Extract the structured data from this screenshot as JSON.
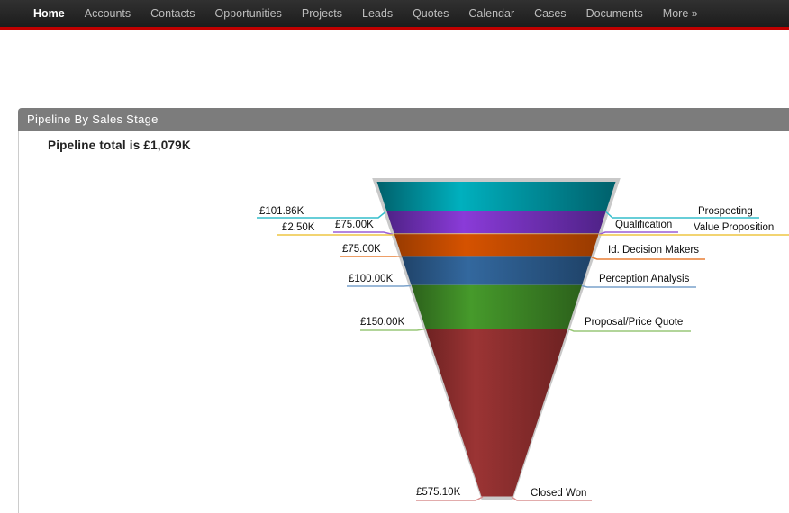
{
  "nav": {
    "items": [
      {
        "label": "Home",
        "active": true
      },
      {
        "label": "Accounts",
        "active": false
      },
      {
        "label": "Contacts",
        "active": false
      },
      {
        "label": "Opportunities",
        "active": false
      },
      {
        "label": "Projects",
        "active": false
      },
      {
        "label": "Leads",
        "active": false
      },
      {
        "label": "Quotes",
        "active": false
      },
      {
        "label": "Calendar",
        "active": false
      },
      {
        "label": "Cases",
        "active": false
      },
      {
        "label": "Documents",
        "active": false
      },
      {
        "label": "More »",
        "active": false
      }
    ]
  },
  "panel": {
    "title": "Pipeline By Sales Stage",
    "subtitle": "Pipeline total is £1,079K"
  },
  "colors": {
    "nav_bg": "#262626",
    "nav_accent": "#c00000",
    "panel_header_bg": "#7c7c7c",
    "funnel_border": "#c9c9c9",
    "label_text": "#0f0f0f"
  },
  "chart_data": {
    "type": "funnel",
    "title": "Pipeline By Sales Stage",
    "total_label": "Pipeline total is £1,079K",
    "total_value_k": 1079.46,
    "currency": "£",
    "stages": [
      {
        "name": "Prospecting",
        "amount_label": "£101.86K",
        "value": 101.86,
        "color_light": "#00b0be",
        "color_dark": "#00606b",
        "line_color": "#35becc"
      },
      {
        "name": "Qualification",
        "amount_label": "£75.00K",
        "value": 75.0,
        "color_light": "#8a3bd8",
        "color_dark": "#4f2287",
        "line_color": "#9b5fd6"
      },
      {
        "name": "Value Proposition",
        "amount_label": "£2.50K",
        "value": 2.5,
        "color_light": "#d9b077",
        "color_dark": "#a8824b",
        "line_color": "#edc544"
      },
      {
        "name": "Id. Decision Makers",
        "amount_label": "£75.00K",
        "value": 75.0,
        "color_light": "#d55200",
        "color_dark": "#993b00",
        "line_color": "#e87e35"
      },
      {
        "name": "Perception Analysis",
        "amount_label": "£100.00K",
        "value": 100.0,
        "color_light": "#33689e",
        "color_dark": "#1f4369",
        "line_color": "#7aa2cb"
      },
      {
        "name": "Proposal/Price Quote",
        "amount_label": "£150.00K",
        "value": 150.0,
        "color_light": "#469a2b",
        "color_dark": "#2c611b",
        "line_color": "#99c778"
      },
      {
        "name": "Closed Won",
        "amount_label": "£575.10K",
        "value": 575.1,
        "color_light": "#9b3434",
        "color_dark": "#6e2222",
        "line_color": "#d99090"
      }
    ]
  }
}
